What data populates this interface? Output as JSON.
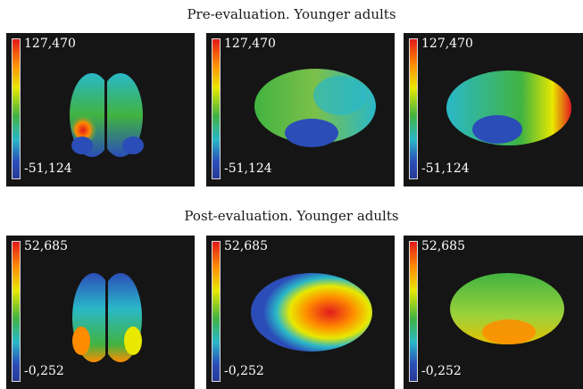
{
  "sections": [
    {
      "title": "Pre-evaluation. Younger adults",
      "colorbar": {
        "max": "127,470",
        "min": "-51,124"
      },
      "views": [
        "frontal-view",
        "left-lateral-view",
        "right-lateral-view"
      ]
    },
    {
      "title": "Post-evaluation. Younger adults",
      "colorbar": {
        "max": "52,685",
        "min": "-0,252"
      },
      "views": [
        "frontal-view",
        "left-lateral-view",
        "right-lateral-view"
      ]
    }
  ],
  "colors": {
    "panel_background": "#151515",
    "colormap": [
      "#e31a1c",
      "#ff8c00",
      "#e8e800",
      "#41b341",
      "#2ab8c8",
      "#2b4db8",
      "#283a96"
    ]
  }
}
